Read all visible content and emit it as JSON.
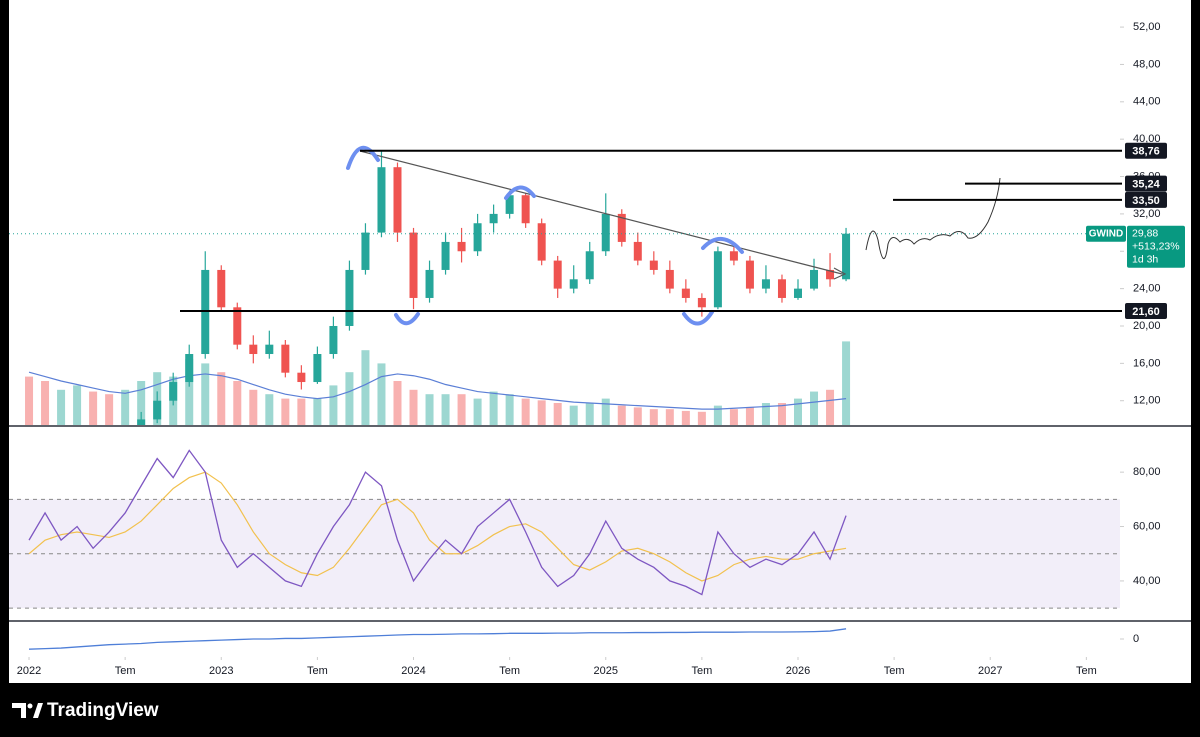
{
  "chart_data": [
    {
      "type": "candlestick",
      "symbol": "GWIND",
      "last_price": {
        "value": 29.88,
        "label": "29,88"
      },
      "change": "+513,23%",
      "countdown": "1d 3h",
      "x": [
        0,
        1,
        2,
        3,
        4,
        5,
        6,
        7,
        8,
        9,
        10,
        11,
        12,
        13,
        14,
        15,
        16,
        17,
        18,
        19,
        20,
        21,
        22,
        23,
        24,
        25,
        26,
        27,
        28,
        29,
        30,
        31,
        32,
        33,
        34,
        35,
        36,
        37,
        38,
        39,
        40,
        41,
        42,
        43,
        44,
        45,
        46,
        47,
        48,
        49,
        50,
        51
      ],
      "open": [
        7.2,
        7,
        6.5,
        7,
        7.5,
        7,
        6.5,
        8,
        10,
        12,
        14,
        17,
        26,
        22,
        18,
        17,
        18,
        15,
        14,
        17,
        20,
        26,
        30,
        37,
        30,
        23,
        26,
        29,
        28,
        31,
        32,
        34,
        31,
        27,
        24,
        25,
        28,
        32,
        29,
        27,
        26,
        24,
        23,
        22,
        28,
        27,
        24,
        25,
        23,
        24,
        26,
        25
      ],
      "high": [
        7.8,
        7.5,
        7.6,
        8,
        8,
        7.6,
        8.6,
        10.8,
        13,
        15,
        18,
        28,
        26.5,
        22.5,
        19,
        19.5,
        18.5,
        15.8,
        17.8,
        21,
        27,
        31,
        38.7,
        37.5,
        30.5,
        27,
        30,
        30.5,
        32,
        33,
        34.5,
        34.2,
        31.5,
        27.5,
        26.5,
        29,
        34.2,
        32.5,
        30,
        28,
        27,
        25,
        23.5,
        28.5,
        28.8,
        27.5,
        26.5,
        25.5,
        25,
        27.2,
        27.8,
        30.5
      ],
      "low": [
        6.6,
        6.1,
        6.2,
        6.8,
        6.7,
        6.2,
        6.3,
        7.8,
        9.6,
        11.5,
        13.5,
        16.5,
        21.5,
        17.5,
        16,
        16.5,
        14.5,
        13.2,
        13.8,
        16.5,
        19.5,
        25.5,
        29.5,
        29,
        21.8,
        22.5,
        25.5,
        26.8,
        27.5,
        30,
        31.5,
        30.5,
        26.5,
        23,
        23.5,
        24.5,
        27.5,
        28.5,
        26.5,
        25.5,
        23.5,
        22.5,
        21,
        21.8,
        26.5,
        23.5,
        23.5,
        22.5,
        22.8,
        23.8,
        24.2,
        24.8
      ],
      "close": [
        7,
        6.5,
        7,
        7.5,
        7,
        6.5,
        8,
        10,
        12,
        14,
        17,
        26,
        22,
        18,
        17,
        18,
        15,
        14,
        17,
        20,
        26,
        30,
        37,
        30,
        23,
        26,
        29,
        28,
        31,
        32,
        34,
        31,
        27,
        24,
        25,
        28,
        32,
        29,
        27,
        26,
        24,
        23,
        22,
        28,
        27,
        24,
        25,
        23,
        24,
        26,
        25,
        29.88
      ],
      "volume": [
        55,
        50,
        40,
        45,
        38,
        35,
        40,
        50,
        60,
        55,
        75,
        70,
        60,
        50,
        40,
        35,
        30,
        30,
        30,
        45,
        60,
        85,
        70,
        50,
        40,
        35,
        35,
        35,
        30,
        38,
        35,
        30,
        28,
        25,
        22,
        25,
        30,
        22,
        20,
        18,
        18,
        16,
        15,
        22,
        18,
        20,
        25,
        25,
        30,
        38,
        40,
        95
      ],
      "volume_ma": [
        60,
        55,
        50,
        46,
        42,
        38,
        36,
        40,
        46,
        52,
        56,
        58,
        56,
        52,
        46,
        40,
        35,
        32,
        30,
        32,
        38,
        46,
        55,
        58,
        56,
        52,
        46,
        42,
        38,
        36,
        34,
        32,
        30,
        28,
        26,
        25,
        24,
        23,
        22,
        21,
        20,
        19,
        18,
        18,
        19,
        20,
        21,
        22,
        24,
        26,
        28,
        30
      ],
      "volume_ylim": [
        0,
        100
      ],
      "up_color": "#26a69a",
      "down_color": "#ef5350",
      "ylim": [
        9.4,
        54.9
      ],
      "yticks": [
        {
          "value": 12,
          "label": "12,00"
        },
        {
          "value": 16,
          "label": "16,00"
        },
        {
          "value": 20,
          "label": "20,00"
        },
        {
          "value": 24,
          "label": "24,00"
        },
        {
          "value": 28,
          "label": "28,00"
        },
        {
          "value": 32,
          "label": "32,00"
        },
        {
          "value": 36,
          "label": "36,00"
        },
        {
          "value": 40,
          "label": "40,00"
        },
        {
          "value": 44,
          "label": "44,00"
        },
        {
          "value": 48,
          "label": "48,00"
        },
        {
          "value": 52,
          "label": "52,00"
        }
      ],
      "levels": [
        {
          "value": 38.76,
          "label": "38,76"
        },
        {
          "value": 35.24,
          "label": "35,24"
        },
        {
          "value": 33.5,
          "label": "33,50"
        },
        {
          "value": 21.6,
          "label": "21,60"
        }
      ],
      "xlim": [
        -1.25,
        68.1
      ],
      "xticks": [
        {
          "value": 0,
          "label": "2022"
        },
        {
          "value": 6,
          "label": "Tem"
        },
        {
          "value": 12,
          "label": "2023"
        },
        {
          "value": 18,
          "label": "Tem"
        },
        {
          "value": 24,
          "label": "2024"
        },
        {
          "value": 30,
          "label": "Tem"
        },
        {
          "value": 36,
          "label": "2025"
        },
        {
          "value": 42,
          "label": "Tem"
        },
        {
          "value": 48,
          "label": "2026"
        },
        {
          "value": 54,
          "label": "Tem"
        },
        {
          "value": 60,
          "label": "2027"
        },
        {
          "value": 66,
          "label": "Tem"
        }
      ]
    },
    {
      "type": "line",
      "color": "#7e57c2",
      "ma_color": "#f2c14e",
      "x": [
        0,
        1,
        2,
        3,
        4,
        5,
        6,
        7,
        8,
        9,
        10,
        11,
        12,
        13,
        14,
        15,
        16,
        17,
        18,
        19,
        20,
        21,
        22,
        23,
        24,
        25,
        26,
        27,
        28,
        29,
        30,
        31,
        32,
        33,
        34,
        35,
        36,
        37,
        38,
        39,
        40,
        41,
        42,
        43,
        44,
        45,
        46,
        47,
        48,
        49,
        50,
        51
      ],
      "values": [
        55,
        65,
        55,
        60,
        52,
        58,
        65,
        75,
        85,
        78,
        88,
        80,
        55,
        45,
        50,
        45,
        40,
        38,
        50,
        60,
        68,
        80,
        75,
        55,
        40,
        48,
        55,
        50,
        60,
        65,
        70,
        58,
        45,
        38,
        42,
        50,
        62,
        52,
        48,
        45,
        40,
        38,
        35,
        58,
        50,
        45,
        48,
        46,
        50,
        58,
        48,
        64
      ],
      "ma": [
        50,
        55,
        57,
        58,
        57,
        56,
        58,
        62,
        68,
        74,
        78,
        80,
        76,
        68,
        58,
        50,
        46,
        43,
        42,
        45,
        52,
        60,
        68,
        70,
        65,
        55,
        50,
        50,
        53,
        57,
        60,
        61,
        58,
        52,
        46,
        44,
        47,
        51,
        52,
        50,
        47,
        43,
        40,
        42,
        46,
        48,
        49,
        48,
        48,
        50,
        51,
        52
      ],
      "bands": [
        30,
        50,
        70
      ],
      "ylim": [
        26,
        96.6
      ],
      "yticks": [
        {
          "value": 40,
          "label": "40,00"
        },
        {
          "value": 60,
          "label": "60,00"
        },
        {
          "value": 80,
          "label": "80,00"
        }
      ]
    },
    {
      "type": "line",
      "color": "#4f7fd8",
      "x": [
        0,
        1,
        2,
        3,
        4,
        5,
        6,
        7,
        8,
        9,
        10,
        11,
        12,
        13,
        14,
        15,
        16,
        17,
        18,
        19,
        20,
        21,
        22,
        23,
        24,
        25,
        26,
        27,
        28,
        29,
        30,
        31,
        32,
        33,
        34,
        35,
        36,
        37,
        38,
        39,
        40,
        41,
        42,
        43,
        44,
        45,
        46,
        47,
        48,
        49,
        50,
        51
      ],
      "values": [
        -0.9,
        -0.85,
        -0.8,
        -0.7,
        -0.6,
        -0.5,
        -0.45,
        -0.4,
        -0.3,
        -0.25,
        -0.2,
        -0.15,
        -0.1,
        -0.05,
        0,
        0.0,
        0.05,
        0.05,
        0.1,
        0.15,
        0.2,
        0.25,
        0.3,
        0.35,
        0.4,
        0.4,
        0.42,
        0.45,
        0.45,
        0.47,
        0.5,
        0.5,
        0.5,
        0.52,
        0.52,
        0.55,
        0.55,
        0.55,
        0.57,
        0.57,
        0.58,
        0.58,
        0.6,
        0.6,
        0.6,
        0.62,
        0.62,
        0.62,
        0.63,
        0.65,
        0.7,
        0.9
      ],
      "ylim": [
        -1.5,
        1.5
      ],
      "yticks": [
        0
      ]
    }
  ],
  "footer": {
    "brand": "TradingView"
  }
}
